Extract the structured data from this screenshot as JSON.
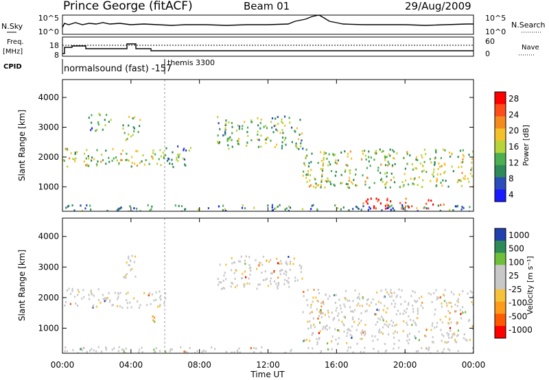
{
  "header": {
    "station": "Prince George (fitACF)",
    "beam": "Beam 01",
    "date": "29/Aug/2009"
  },
  "top_panels": {
    "nsky_label": "N.Sky",
    "nsky_ticks": [
      "10^5",
      "10^0"
    ],
    "nsearch_label": "N.Search",
    "nsearch_ticks": [
      "10^5",
      "10^0"
    ],
    "freq_label_1": "Freq.",
    "freq_label_2": "[MHz]",
    "freq_ticks": [
      "18",
      "8"
    ],
    "nave_label": "Nave",
    "nave_ticks": [
      "60",
      "0"
    ],
    "cpid_label": "CPID",
    "cpid_mode_1": "normalsound (fast)  -157",
    "cpid_mode_2": "themis 3300"
  },
  "colors": {
    "power": [
      "#1a1aff",
      "#2a4dbb",
      "#2e8b57",
      "#4caf50",
      "#b7d43a",
      "#f5c12b",
      "#f58a1f",
      "#ff4d1a",
      "#ff0000"
    ],
    "velocity": [
      "#ff0000",
      "#ff5a00",
      "#ff9a1a",
      "#f6c23a",
      "#c8c8c8",
      "#c8c8c8",
      "#6ec03a",
      "#2e8b57",
      "#2040b0"
    ]
  },
  "chart_data": [
    {
      "type": "heatmap",
      "title": "",
      "xlabel": "",
      "ylabel": "Slant Range [km]",
      "xlim": [
        "00:00",
        "00:00"
      ],
      "ylim": [
        180,
        4600
      ],
      "x_ticks": [
        "00:00",
        "04:00",
        "08:00",
        "12:00",
        "16:00",
        "20:00",
        "00:00"
      ],
      "y_ticks": [
        "1000",
        "2000",
        "3000",
        "4000"
      ],
      "colorbar_label": "Power [dB]",
      "colorbar_ticks": [
        "28",
        "24",
        "20",
        "16",
        "12",
        "8",
        "4"
      ],
      "colorbar_range": [
        0,
        30
      ],
      "echo_regions": [
        {
          "t0": 0.0,
          "t1": 3.0,
          "r0": 1700,
          "r1": 2350,
          "value": 14
        },
        {
          "t0": 1.5,
          "t1": 2.8,
          "r0": 2900,
          "r1": 3500,
          "value": 10
        },
        {
          "t0": 3.0,
          "t1": 6.0,
          "r0": 1700,
          "r1": 2300,
          "value": 16
        },
        {
          "t0": 3.5,
          "t1": 4.5,
          "r0": 2600,
          "r1": 3400,
          "value": 14
        },
        {
          "t0": 6.0,
          "t1": 7.5,
          "r0": 1700,
          "r1": 2500,
          "value": 10
        },
        {
          "t0": 9.0,
          "t1": 14.0,
          "r0": 2300,
          "r1": 3400,
          "value": 12
        },
        {
          "t0": 14.0,
          "t1": 24.0,
          "r0": 1000,
          "r1": 2300,
          "value": 14
        },
        {
          "t0": 17.5,
          "t1": 22.5,
          "r0": 300,
          "r1": 650,
          "value": 26
        },
        {
          "t0": 0.0,
          "t1": 24.0,
          "r0": 200,
          "r1": 420,
          "value": 8
        }
      ]
    },
    {
      "type": "heatmap",
      "title": "",
      "xlabel": "Time UT",
      "ylabel": "Slant Range [km]",
      "xlim": [
        "00:00",
        "00:00"
      ],
      "ylim": [
        180,
        4600
      ],
      "x_ticks": [
        "00:00",
        "04:00",
        "08:00",
        "12:00",
        "16:00",
        "20:00",
        "00:00"
      ],
      "y_ticks": [
        "1000",
        "2000",
        "3000",
        "4000"
      ],
      "colorbar_label": "Velocity [m s⁻¹]",
      "colorbar_ticks": [
        "1000",
        "500",
        "100",
        "25",
        "-25",
        "-100",
        "-500",
        "-1000"
      ],
      "colorbar_range": [
        -1000,
        1000
      ],
      "echo_regions": [
        {
          "t0": 0.0,
          "t1": 3.0,
          "r0": 1700,
          "r1": 2350,
          "value": 0
        },
        {
          "t0": 3.0,
          "t1": 6.0,
          "r0": 1700,
          "r1": 2300,
          "value": 0
        },
        {
          "t0": 3.5,
          "t1": 4.5,
          "r0": 2600,
          "r1": 3400,
          "value": 0
        },
        {
          "t0": 4.9,
          "t1": 5.4,
          "r0": 1100,
          "r1": 1500,
          "value": -400
        },
        {
          "t0": 9.0,
          "t1": 14.0,
          "r0": 2300,
          "r1": 3400,
          "value": 0
        },
        {
          "t0": 14.0,
          "t1": 24.0,
          "r0": 500,
          "r1": 2300,
          "value": 0
        },
        {
          "t0": 0.0,
          "t1": 24.0,
          "r0": 200,
          "r1": 420,
          "value": 50
        }
      ]
    }
  ]
}
